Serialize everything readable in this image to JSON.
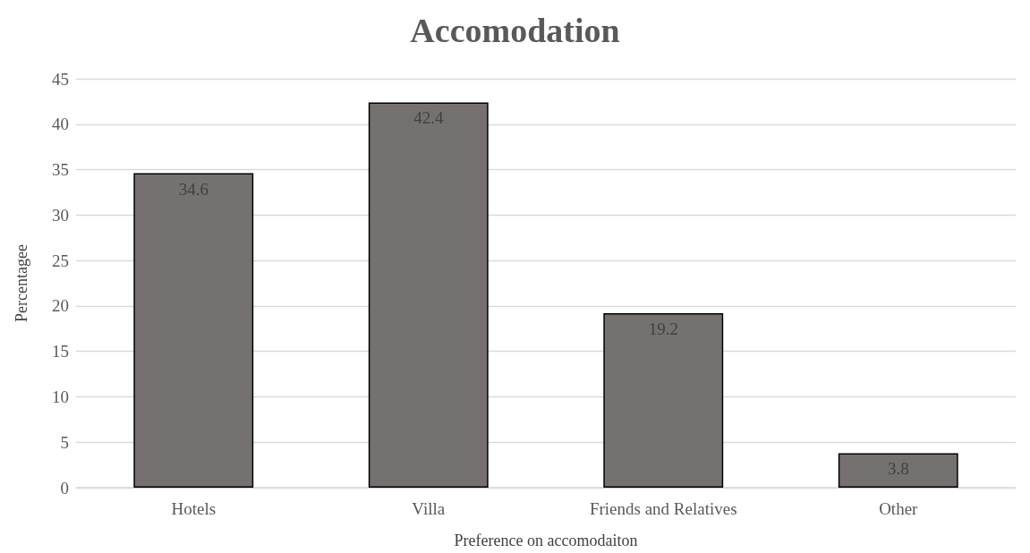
{
  "chart_data": {
    "type": "bar",
    "title": "Accomodation",
    "xlabel": "Preference on accomodaiton",
    "ylabel": "Percentagee",
    "categories": [
      "Hotels",
      "Villa",
      "Friends and Relatives",
      "Other"
    ],
    "values": [
      34.6,
      42.4,
      19.2,
      3.8
    ],
    "color": "#767171",
    "ylim": [
      0,
      45
    ],
    "yticks": [
      0,
      5,
      10,
      15,
      20,
      25,
      30,
      35,
      40,
      45
    ],
    "grid": "y",
    "data_labels": true
  }
}
